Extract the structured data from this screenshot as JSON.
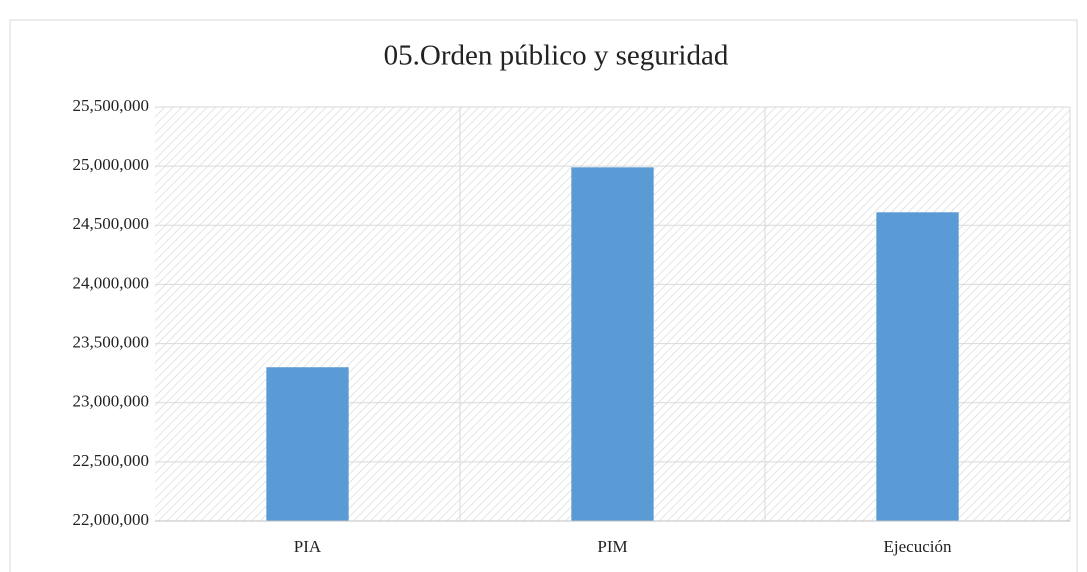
{
  "chart_data": {
    "type": "bar",
    "title": "05.Orden público y seguridad",
    "categories": [
      "PIA",
      "PIM",
      "Ejecución"
    ],
    "values": [
      23300000,
      24990000,
      24610000
    ],
    "color": "#5b9bd5",
    "ylim": [
      22000000,
      25500000
    ],
    "yticks": [
      {
        "value": 22000000,
        "label": "22,000,000"
      },
      {
        "value": 22500000,
        "label": "22,500,000"
      },
      {
        "value": 23000000,
        "label": "23,000,000"
      },
      {
        "value": 23500000,
        "label": "23,500,000"
      },
      {
        "value": 24000000,
        "label": "24,000,000"
      },
      {
        "value": 24500000,
        "label": "24,500,000"
      },
      {
        "value": 25000000,
        "label": "25,000,000"
      },
      {
        "value": 25500000,
        "label": "25,500,000"
      }
    ],
    "grid": true
  }
}
